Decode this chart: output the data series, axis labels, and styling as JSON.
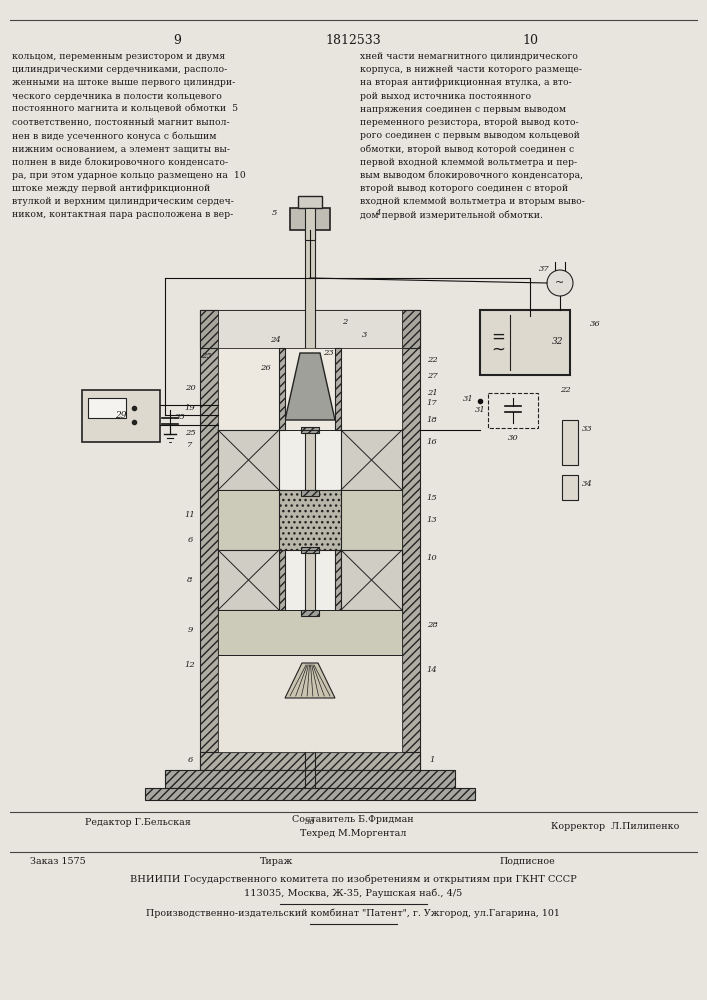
{
  "page_width": 7.07,
  "page_height": 10.0,
  "bg_color": "#e8e5de",
  "header_line_color": "#444444",
  "text_color": "#1a1a1a",
  "page_num_left": "9",
  "page_num_center": "1812533",
  "page_num_right": "10",
  "left_column_text": [
    "кольцом, переменным резистором и двумя",
    "цилиндрическими сердечниками, располо-",
    "женными на штоке выше первого цилиндри-",
    "ческого сердечника в полости кольцевого",
    "постоянного магнита и кольцевой обмотки  5",
    "соответственно, постоянный магнит выпол-",
    "нен в виде усеченного конуса с большим",
    "нижним основанием, а элемент защиты вы-",
    "полнен в виде блокировочного конденсато-",
    "ра, при этом ударное кольцо размещено на  10",
    "штоке между первой антифрикционной",
    "втулкой и верхним цилиндрическим сердеч-",
    "ником, контактная пара расположена в вер-"
  ],
  "right_column_text": [
    "хней части немагнитного цилиндрического",
    "корпуса, в нижней части которого размеще-",
    "на вторая антифрикционная втулка, а вто-",
    "рой выход источника постоянного",
    "напряжения соединен с первым выводом",
    "переменного резистора, второй вывод кото-",
    "рого соединен с первым выводом кольцевой",
    "обмотки, второй вывод которой соединен с",
    "первой входной клеммой вольтметра и пер-",
    "вым выводом блокировочного конденсатора,",
    "второй вывод которого соединен с второй",
    "входной клеммой вольтметра и вторым выво-",
    "дом первой измерительной обмотки."
  ],
  "editor_line": "Редактор Г.Бельская",
  "composer_line": "Составитель Б.Фридман",
  "corrector_line": "Корректор  Л.Пилипенко",
  "techred_line": "Техред М.Моргентал",
  "order_line": "Заказ 1575",
  "tirazh_line": "Тираж",
  "podpisnoe_line": "Подписное",
  "vniiipi_line": "ВНИИПИ Государственного комитета по изобретениям и открытиям при ГКНТ СССР",
  "address_line": "113035, Москва, Ж-35, Раушская наб., 4/5",
  "factory_line": "Производственно-издательский комбинат \"Патент\", г. Ужгород, ул.Гагарина, 101",
  "diagram_border": "#222222",
  "hatch_color": "#333333",
  "line_color": "#111111"
}
